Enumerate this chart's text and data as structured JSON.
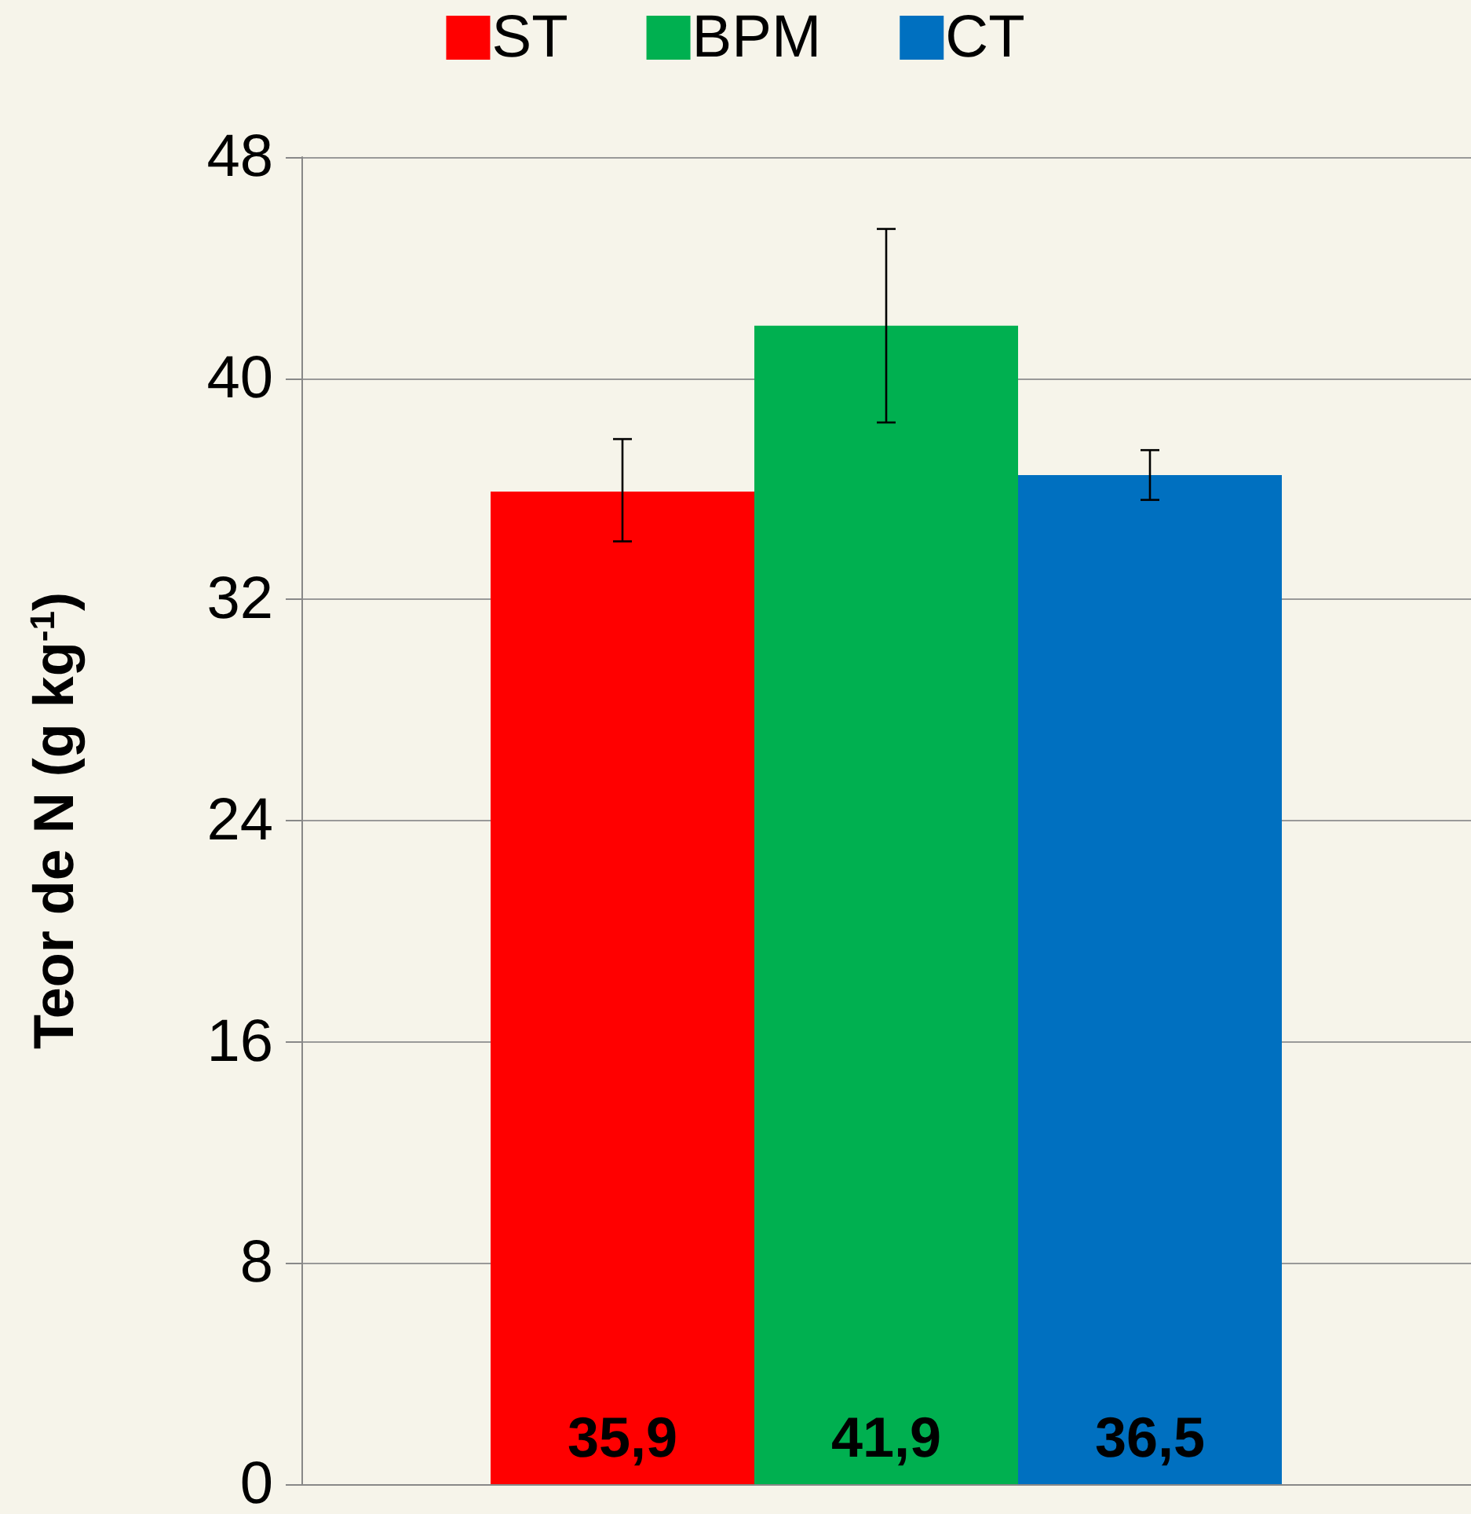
{
  "chart_data": {
    "type": "bar",
    "ylabel": "Teor de N (g kg$^{-1}$)",
    "categories": [
      null
    ],
    "series": [
      {
        "name": "ST",
        "color": "#ff0000",
        "values": [
          35.9
        ],
        "errors": [
          [
            34.1,
            37.8
          ]
        ],
        "value_labels": [
          "35,9"
        ]
      },
      {
        "name": "BPM",
        "color": "#00b050",
        "values": [
          41.9
        ],
        "errors": [
          [
            38.4,
            45.4
          ]
        ],
        "value_labels": [
          "41,9"
        ]
      },
      {
        "name": "CT",
        "color": "#0070c0",
        "values": [
          36.5
        ],
        "errors": [
          [
            35.6,
            37.4
          ]
        ],
        "value_labels": [
          "36,5"
        ]
      }
    ],
    "ylim": [
      0,
      48
    ],
    "yticks": [
      0,
      8,
      16,
      24,
      32,
      40,
      48
    ],
    "grid": "y",
    "legend": "top"
  }
}
